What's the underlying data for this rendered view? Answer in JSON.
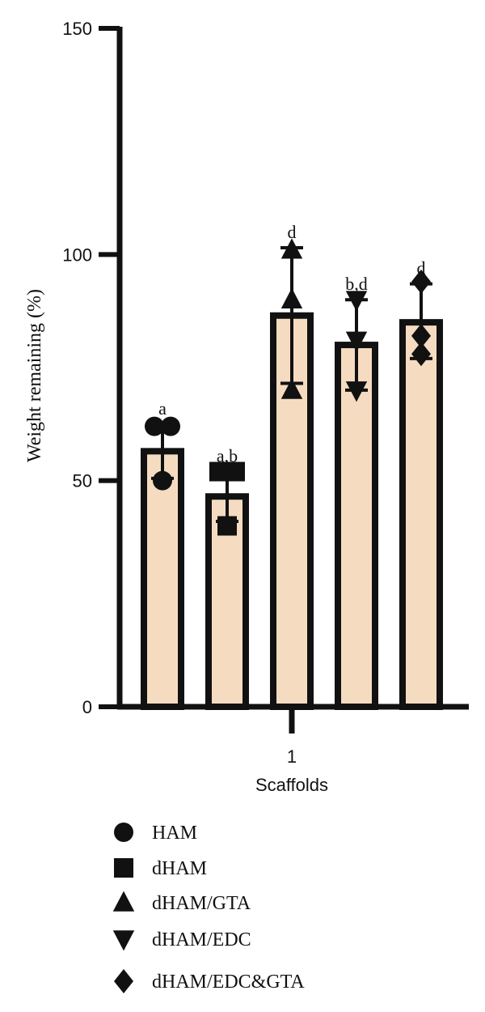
{
  "chart_data": {
    "type": "bar",
    "title": "",
    "ylabel": "Weight remaining (%)",
    "xlabel": "Scaffolds",
    "x_tick_label": "1",
    "ylim": [
      0,
      150
    ],
    "yticks": [
      0,
      50,
      100,
      150
    ],
    "grid": false,
    "legend_position": "bottom",
    "bar_fill_color": "#f5dcc1",
    "bar_edge_color": "#111111",
    "series": [
      {
        "name": "HAM",
        "marker": "circle",
        "mean": 56.5,
        "error_upper": 62.5,
        "error_lower": 50.5,
        "points": [
          62,
          62,
          50
        ],
        "sig": "a"
      },
      {
        "name": "dHAM",
        "marker": "square",
        "mean": 46.5,
        "error_upper": 52,
        "error_lower": 41,
        "points": [
          52,
          52,
          40
        ],
        "sig": "a,b"
      },
      {
        "name": "dHAM/GTA",
        "marker": "triangle-up",
        "mean": 86.5,
        "error_upper": 101.5,
        "error_lower": 71.5,
        "points": [
          101,
          90,
          70
        ],
        "sig": "d"
      },
      {
        "name": "dHAM/EDC",
        "marker": "triangle-down",
        "mean": 80,
        "error_upper": 90,
        "error_lower": 70,
        "points": [
          90,
          81,
          70
        ],
        "sig": "b,d"
      },
      {
        "name": "dHAM/EDC&GTA",
        "marker": "diamond",
        "mean": 85,
        "error_upper": 93.5,
        "error_lower": 77,
        "points": [
          94,
          82,
          78
        ],
        "sig": "d"
      }
    ]
  }
}
